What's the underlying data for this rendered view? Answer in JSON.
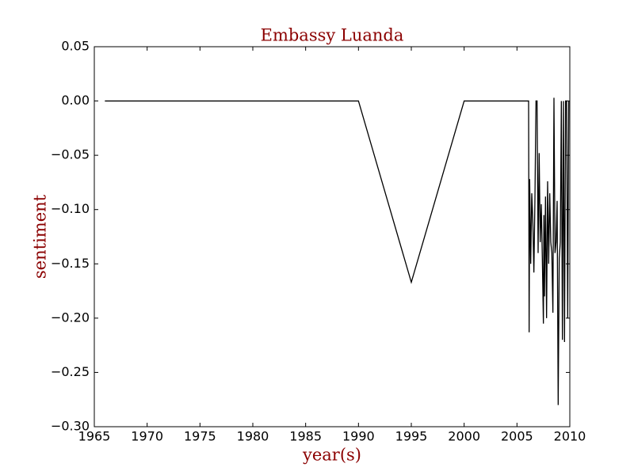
{
  "chart_data": {
    "type": "line",
    "title": "Embassy Luanda",
    "x_label": "year(s)",
    "y_label": "sentiment",
    "x": [
      1966.0,
      1990.0,
      1995.0,
      2000.0,
      2006.1,
      2006.15,
      2006.2,
      2006.3,
      2006.4,
      2006.5,
      2006.6,
      2006.7,
      2006.8,
      2006.9,
      2007.0,
      2007.1,
      2007.2,
      2007.3,
      2007.4,
      2007.5,
      2007.55,
      2007.6,
      2007.7,
      2007.8,
      2007.9,
      2008.0,
      2008.1,
      2008.2,
      2008.3,
      2008.4,
      2008.5,
      2008.6,
      2008.7,
      2008.8,
      2008.9,
      2009.0,
      2009.1,
      2009.2,
      2009.3,
      2009.4,
      2009.5,
      2009.6,
      2009.7,
      2009.8,
      2009.9
    ],
    "values": [
      0,
      0,
      -0.167,
      0,
      0,
      -0.213,
      -0.072,
      -0.15,
      -0.085,
      -0.11,
      -0.158,
      -0.09,
      0,
      0,
      -0.14,
      -0.048,
      -0.13,
      -0.095,
      -0.145,
      -0.205,
      -0.105,
      -0.18,
      -0.088,
      -0.2,
      -0.074,
      -0.15,
      -0.085,
      -0.13,
      -0.14,
      -0.195,
      0.003,
      -0.14,
      -0.13,
      -0.092,
      -0.28,
      -0.145,
      -0.13,
      0,
      -0.22,
      0,
      -0.222,
      0,
      0,
      -0.2,
      0
    ],
    "color": "#000000",
    "xlim": [
      1965,
      2010
    ],
    "xticks": [
      1965,
      1970,
      1975,
      1980,
      1985,
      1990,
      1995,
      2000,
      2005,
      2010
    ],
    "ylim": [
      -0.3,
      0.05
    ],
    "yticks": [
      {
        "value": -0.3,
        "label": "−0.30"
      },
      {
        "value": -0.25,
        "label": "−0.25"
      },
      {
        "value": -0.2,
        "label": "−0.20"
      },
      {
        "value": -0.15,
        "label": "−0.15"
      },
      {
        "value": -0.1,
        "label": "−0.10"
      },
      {
        "value": -0.05,
        "label": "−0.05"
      },
      {
        "value": 0,
        "label": "0.00"
      },
      {
        "value": 0.05,
        "label": "0.05"
      }
    ],
    "grid": false
  }
}
